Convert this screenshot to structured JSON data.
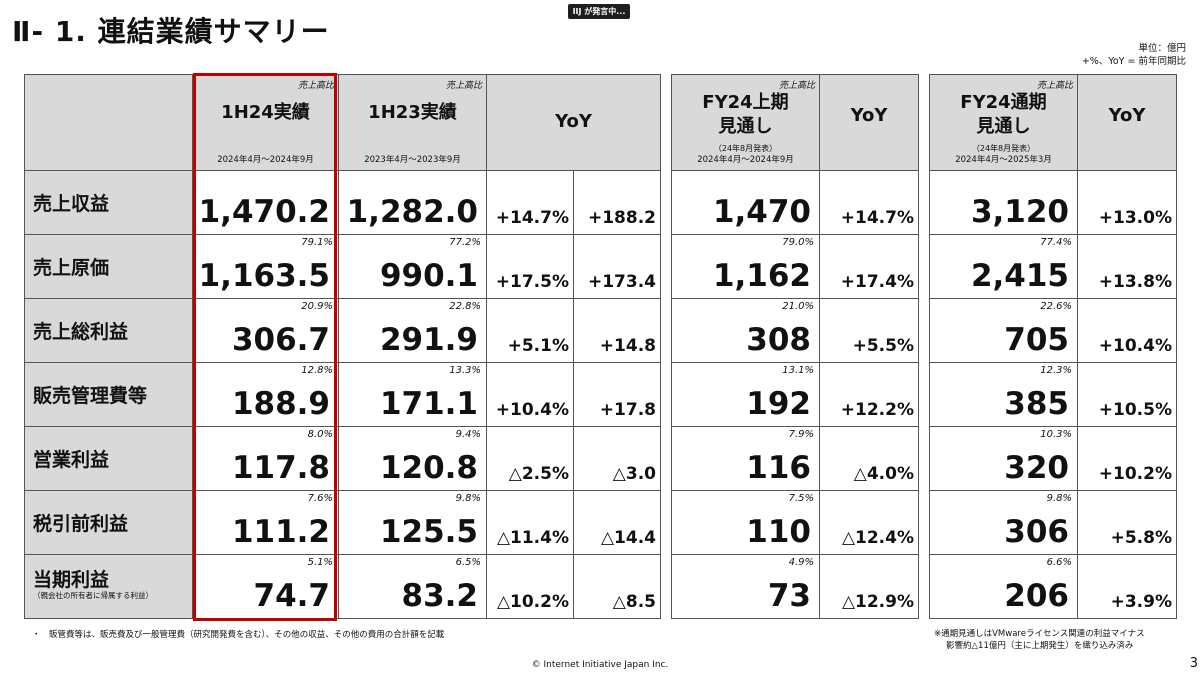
{
  "title": "Ⅱ- 1.  連結業績サマリー",
  "badge": "IIJ が発言中...",
  "units": {
    "line1": "単位：億円",
    "line2": "+%、YoY = 前年同期比"
  },
  "headers": {
    "ratio_label": "売上高比",
    "h1_24": {
      "name": "1H24実績",
      "period": "2024年4月～2024年9月"
    },
    "h1_23": {
      "name": "1H23実績",
      "period": "2023年4月～2023年9月"
    },
    "yoy": "YoY",
    "fy24h1": {
      "line1": "FY24上期",
      "line2": "見通し",
      "note": "（24年8月発表）",
      "period": "2024年4月～2024年9月"
    },
    "fy24": {
      "line1": "FY24通期",
      "line2": "見通し",
      "note": "（24年8月発表）",
      "period": "2024年4月～2025年3月"
    }
  },
  "rows": [
    {
      "label": "売上収益",
      "sub": "",
      "h124_pct": "",
      "h124": "1,470.2",
      "h123_pct": "",
      "h123": "1,282.0",
      "yoy_pct": "+14.7%",
      "yoy_abs": "+188.2",
      "fyh1_pct": "",
      "fyh1": "1,470",
      "fyh1_yoy": "+14.7%",
      "fy_pct": "",
      "fy": "3,120",
      "fy_yoy": "+13.0%"
    },
    {
      "label": "売上原価",
      "sub": "",
      "h124_pct": "79.1%",
      "h124": "1,163.5",
      "h123_pct": "77.2%",
      "h123": "990.1",
      "yoy_pct": "+17.5%",
      "yoy_abs": "+173.4",
      "fyh1_pct": "79.0%",
      "fyh1": "1,162",
      "fyh1_yoy": "+17.4%",
      "fy_pct": "77.4%",
      "fy": "2,415",
      "fy_yoy": "+13.8%"
    },
    {
      "label": "売上総利益",
      "sub": "",
      "h124_pct": "20.9%",
      "h124": "306.7",
      "h123_pct": "22.8%",
      "h123": "291.9",
      "yoy_pct": "+5.1%",
      "yoy_abs": "+14.8",
      "fyh1_pct": "21.0%",
      "fyh1": "308",
      "fyh1_yoy": "+5.5%",
      "fy_pct": "22.6%",
      "fy": "705",
      "fy_yoy": "+10.4%"
    },
    {
      "label": "販売管理費等",
      "sub": "",
      "h124_pct": "12.8%",
      "h124": "188.9",
      "h123_pct": "13.3%",
      "h123": "171.1",
      "yoy_pct": "+10.4%",
      "yoy_abs": "+17.8",
      "fyh1_pct": "13.1%",
      "fyh1": "192",
      "fyh1_yoy": "+12.2%",
      "fy_pct": "12.3%",
      "fy": "385",
      "fy_yoy": "+10.5%"
    },
    {
      "label": "営業利益",
      "sub": "",
      "h124_pct": "8.0%",
      "h124": "117.8",
      "h123_pct": "9.4%",
      "h123": "120.8",
      "yoy_pct": "△2.5%",
      "yoy_abs": "△3.0",
      "fyh1_pct": "7.9%",
      "fyh1": "116",
      "fyh1_yoy": "△4.0%",
      "fy_pct": "10.3%",
      "fy": "320",
      "fy_yoy": "+10.2%"
    },
    {
      "label": "税引前利益",
      "sub": "",
      "h124_pct": "7.6%",
      "h124": "111.2",
      "h123_pct": "9.8%",
      "h123": "125.5",
      "yoy_pct": "△11.4%",
      "yoy_abs": "△14.4",
      "fyh1_pct": "7.5%",
      "fyh1": "110",
      "fyh1_yoy": "△12.4%",
      "fy_pct": "9.8%",
      "fy": "306",
      "fy_yoy": "+5.8%"
    },
    {
      "label": "当期利益",
      "sub": "（親会社の所有者に帰属する利益）",
      "h124_pct": "5.1%",
      "h124": "74.7",
      "h123_pct": "6.5%",
      "h123": "83.2",
      "yoy_pct": "△10.2%",
      "yoy_abs": "△8.5",
      "fyh1_pct": "4.9%",
      "fyh1": "73",
      "fyh1_yoy": "△12.9%",
      "fy_pct": "6.6%",
      "fy": "206",
      "fy_yoy": "+3.9%"
    }
  ],
  "footnotes": {
    "left": "・　販管費等は、販売費及び一般管理費（研究開発費を含む）、その他の収益、その他の費用の合計額を記載",
    "right1": "※通期見通しはVMwareライセンス関連の利益マイナス",
    "right2": "影響約△11億円（主に上期発生）を織り込み済み"
  },
  "copyright": "© Internet Initiative Japan Inc.",
  "page_number": "3"
}
